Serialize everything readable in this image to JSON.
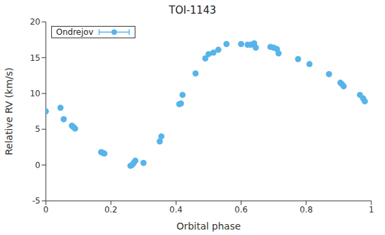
{
  "chart_data": {
    "type": "scatter",
    "title": "TOI-1143",
    "x_label": "Orbital phase",
    "y_label": "Relative RV (km/s)",
    "xlim": [
      0,
      1
    ],
    "xticks": [
      0,
      0.2,
      0.4,
      0.6,
      0.8,
      1
    ],
    "ylim": [
      -5,
      20
    ],
    "yticks": [
      -5,
      0,
      5,
      10,
      15,
      20
    ],
    "grid": false,
    "legend": "upper left",
    "x": [
      0.0,
      0.045,
      0.055,
      0.08,
      0.085,
      0.09,
      0.17,
      0.175,
      0.18,
      0.26,
      0.265,
      0.27,
      0.275,
      0.3,
      0.35,
      0.355,
      0.41,
      0.415,
      0.42,
      0.46,
      0.49,
      0.5,
      0.515,
      0.53,
      0.555,
      0.6,
      0.62,
      0.63,
      0.64,
      0.645,
      0.69,
      0.7,
      0.71,
      0.715,
      0.775,
      0.81,
      0.87,
      0.905,
      0.91,
      0.915,
      0.965,
      0.975,
      0.98
    ],
    "series": [
      {
        "name": "Ondrejov",
        "color": "#56b4e9",
        "marker": "circle",
        "values": [
          7.5,
          8.0,
          6.4,
          5.5,
          5.3,
          5.1,
          1.8,
          1.7,
          1.6,
          -0.1,
          0.0,
          0.3,
          0.6,
          0.3,
          3.3,
          4.0,
          8.5,
          8.6,
          9.8,
          12.8,
          14.9,
          15.5,
          15.7,
          16.1,
          16.9,
          16.9,
          16.8,
          16.8,
          17.0,
          16.4,
          16.5,
          16.4,
          16.2,
          15.6,
          14.8,
          14.1,
          12.7,
          11.5,
          11.3,
          11.0,
          9.8,
          9.3,
          8.9
        ]
      }
    ]
  }
}
